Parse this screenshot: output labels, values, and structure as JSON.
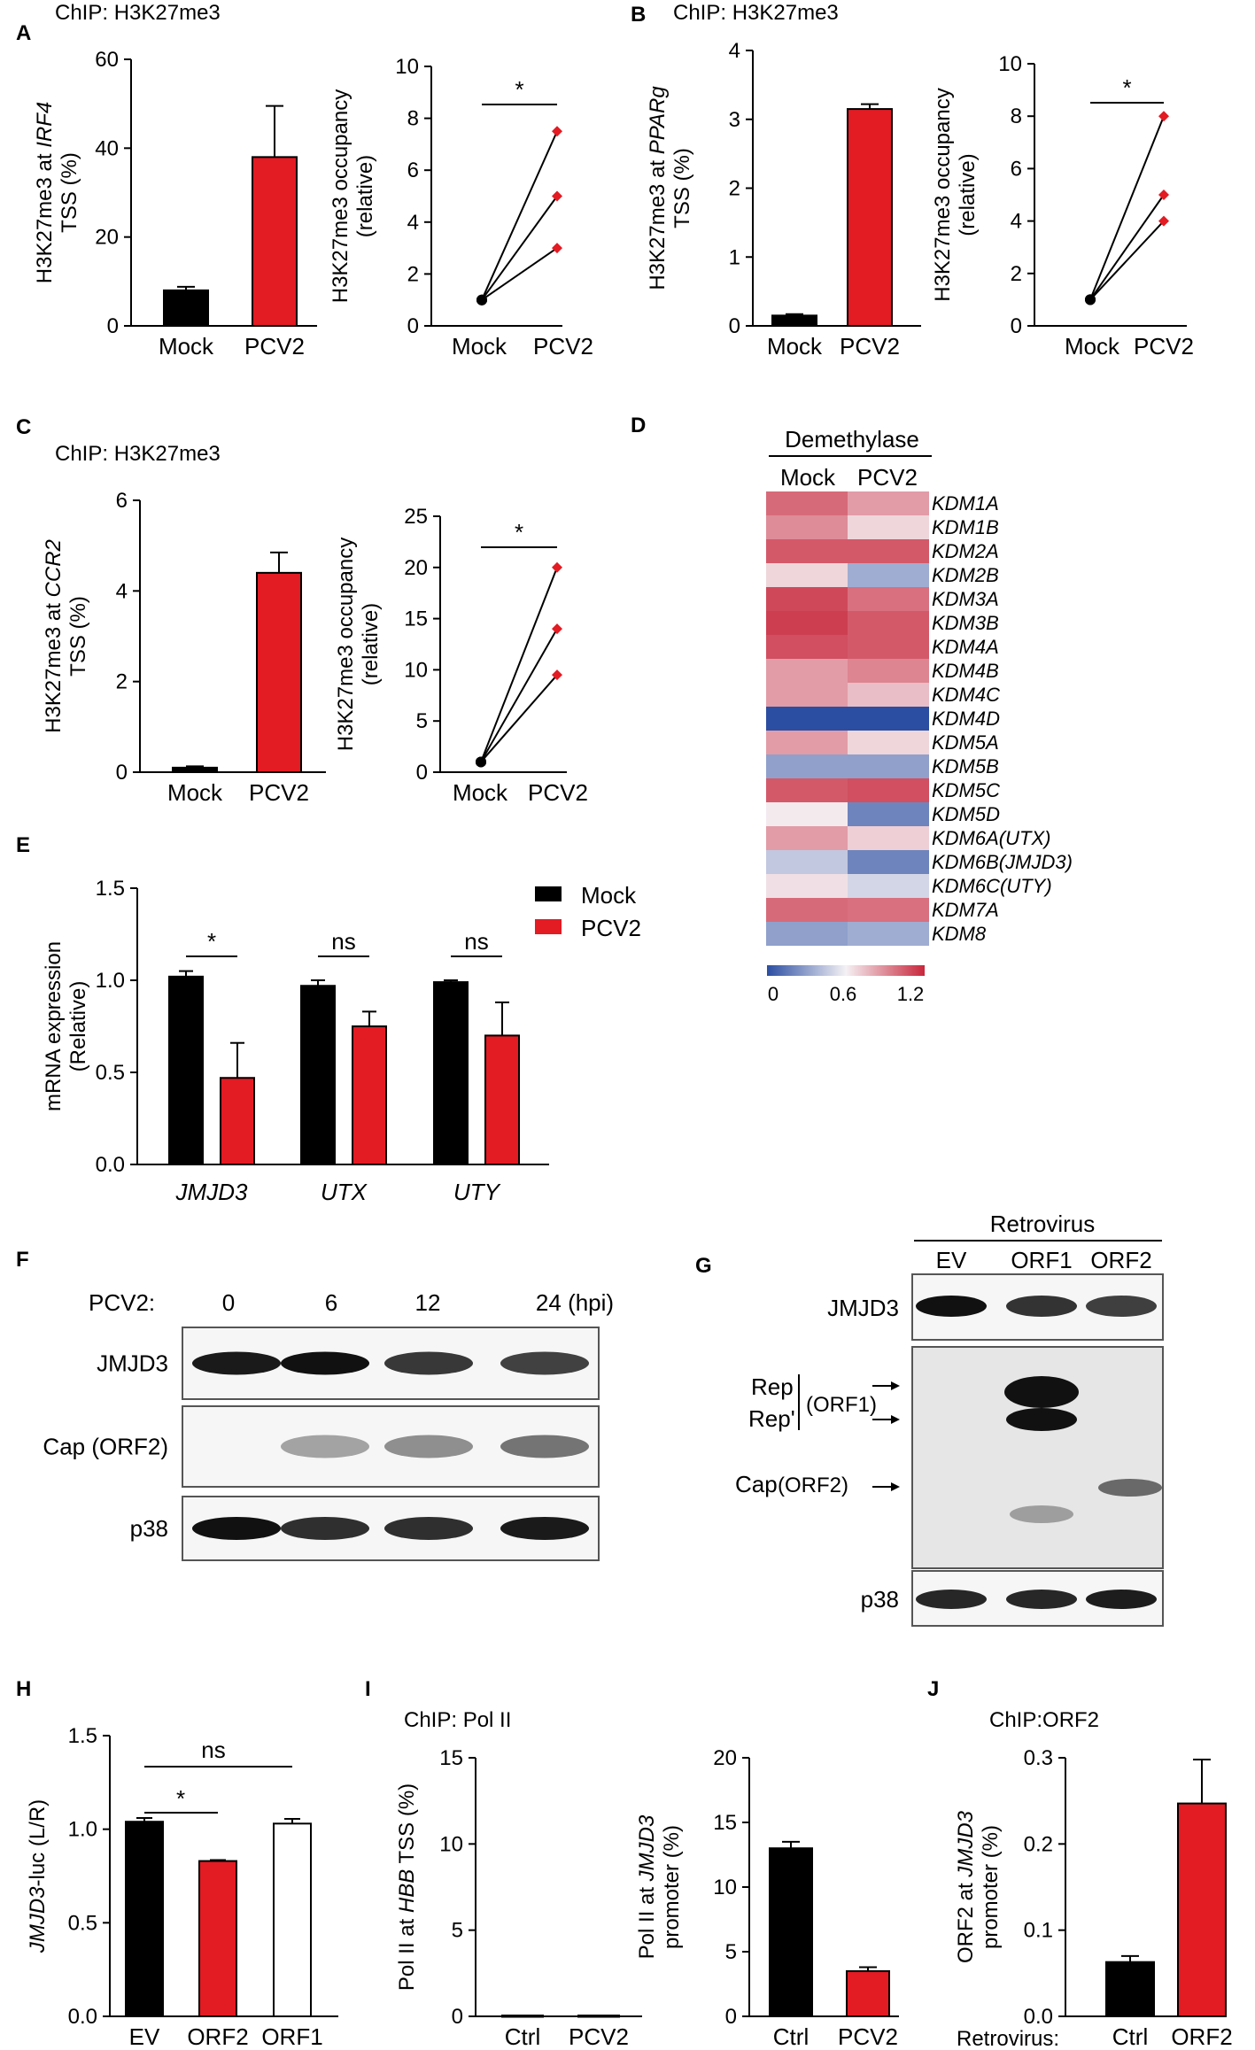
{
  "panel_labels": [
    "A",
    "B",
    "C",
    "D",
    "E",
    "F",
    "G",
    "H",
    "I",
    "J"
  ],
  "colors": {
    "mock": "#000000",
    "pcv2": "#e31b23",
    "white_bar": "#ffffff",
    "line": "#000000",
    "heat_low": "#2b4ea2",
    "heat_mid": "#f4f1f4",
    "heat_high": "#c8263b"
  },
  "chart_data": [
    {
      "id": "A",
      "type": "bar",
      "title": "ChIP: H3K27me3",
      "ylabel": [
        "H3K27me3 at IRF4",
        "TSS (%)"
      ],
      "ylabel_italic_word": "IRF4",
      "categories": [
        "Mock",
        "PCV2"
      ],
      "values": [
        8,
        38
      ],
      "errors": [
        0.8,
        11.5
      ],
      "ylim": [
        0,
        60
      ],
      "yticks": [
        "0",
        "20",
        "40",
        "60"
      ]
    },
    {
      "id": "A2",
      "type": "line",
      "ylabel": [
        "H3K27me3 occupancy",
        "(relative)"
      ],
      "categories": [
        "Mock",
        "PCV2"
      ],
      "series": [
        {
          "values": [
            1,
            7.5
          ]
        },
        {
          "values": [
            1,
            5
          ]
        },
        {
          "values": [
            1,
            3
          ]
        }
      ],
      "ylim": [
        0,
        10
      ],
      "yticks": [
        "0",
        "2",
        "4",
        "6",
        "8",
        "10"
      ],
      "significance": "*"
    },
    {
      "id": "B",
      "type": "bar",
      "title": "ChIP: H3K27me3",
      "ylabel": [
        "H3K27me3 at PPARg",
        "TSS (%)"
      ],
      "ylabel_italic_word": "PPARg",
      "categories": [
        "Mock",
        "PCV2"
      ],
      "values": [
        0.15,
        3.15
      ],
      "errors": [
        0.02,
        0.07
      ],
      "ylim": [
        0,
        4
      ],
      "yticks": [
        "0",
        "1",
        "2",
        "3",
        "4"
      ]
    },
    {
      "id": "B2",
      "type": "line",
      "ylabel": [
        "H3K27me3 occupancy",
        "(relative)"
      ],
      "categories": [
        "Mock",
        "PCV2"
      ],
      "series": [
        {
          "values": [
            1,
            8
          ]
        },
        {
          "values": [
            1,
            5
          ]
        },
        {
          "values": [
            1,
            4
          ]
        }
      ],
      "ylim": [
        0,
        10
      ],
      "yticks": [
        "0",
        "2",
        "4",
        "6",
        "8",
        "10"
      ],
      "significance": "*"
    },
    {
      "id": "C",
      "type": "bar",
      "title": "ChIP: H3K27me3",
      "ylabel": [
        "H3K27me3 at CCR2",
        "TSS (%)"
      ],
      "ylabel_italic_word": "CCR2",
      "categories": [
        "Mock",
        "PCV2"
      ],
      "values": [
        0.1,
        4.4
      ],
      "errors": [
        0.03,
        0.45
      ],
      "ylim": [
        0,
        6
      ],
      "yticks": [
        "0",
        "2",
        "4",
        "6"
      ]
    },
    {
      "id": "C2",
      "type": "line",
      "ylabel": [
        "H3K27me3 occupancy",
        "(relative)"
      ],
      "categories": [
        "Mock",
        "PCV2"
      ],
      "series": [
        {
          "values": [
            1,
            20
          ]
        },
        {
          "values": [
            1,
            14
          ]
        },
        {
          "values": [
            1,
            9.5
          ]
        }
      ],
      "ylim": [
        0,
        25
      ],
      "yticks": [
        "0",
        "5",
        "10",
        "15",
        "20",
        "25"
      ],
      "significance": "*"
    },
    {
      "id": "D",
      "type": "heatmap",
      "title": "Demethylase",
      "columns": [
        "Mock",
        "PCV2"
      ],
      "rows": [
        "KDM1A",
        "KDM1B",
        "KDM2A",
        "KDM2B",
        "KDM3A",
        "KDM3B",
        "KDM4A",
        "KDM4B",
        "KDM4C",
        "KDM4D",
        "KDM5A",
        "KDM5B",
        "KDM5C",
        "KDM5D",
        "KDM6A(UTX)",
        "KDM6B(JMJD3)",
        "KDM6C(UTY)",
        "KDM7A",
        "KDM8"
      ],
      "values": [
        [
          1.0,
          0.85
        ],
        [
          0.9,
          0.68
        ],
        [
          1.05,
          1.05
        ],
        [
          0.68,
          0.35
        ],
        [
          1.1,
          0.98
        ],
        [
          1.13,
          1.05
        ],
        [
          1.08,
          1.05
        ],
        [
          0.85,
          0.92
        ],
        [
          0.85,
          0.75
        ],
        [
          0.0,
          0.0
        ],
        [
          0.85,
          0.68
        ],
        [
          0.3,
          0.3
        ],
        [
          1.05,
          1.08
        ],
        [
          0.62,
          0.2
        ],
        [
          0.85,
          0.7
        ],
        [
          0.45,
          0.2
        ],
        [
          0.65,
          0.5
        ],
        [
          1.0,
          0.98
        ],
        [
          0.3,
          0.35
        ]
      ],
      "colorbar": {
        "min": 0,
        "max": 1.2,
        "ticks": [
          "0",
          "0.6",
          "1.2"
        ]
      }
    },
    {
      "id": "E",
      "type": "bar",
      "ylabel": [
        "mRNA expression",
        "(Relative)"
      ],
      "categories": [
        "JMJD3",
        "UTX",
        "UTY"
      ],
      "series": [
        {
          "name": "Mock",
          "values": [
            1.02,
            0.97,
            0.99
          ],
          "errors": [
            0.03,
            0.03,
            0.01
          ]
        },
        {
          "name": "PCV2",
          "values": [
            0.47,
            0.75,
            0.7
          ],
          "errors": [
            0.19,
            0.08,
            0.18
          ]
        }
      ],
      "ylim": [
        0,
        1.5
      ],
      "yticks": [
        "0.0",
        "0.5",
        "1.0",
        "1.5"
      ],
      "significance": [
        "*",
        "ns",
        "ns"
      ]
    },
    {
      "id": "H",
      "type": "bar",
      "ylabel": [
        "JMJD3-luc (L/R)"
      ],
      "ylabel_italic_word": "JMJD3",
      "categories": [
        "EV",
        "ORF2",
        "ORF1"
      ],
      "values": [
        1.04,
        0.83,
        1.03
      ],
      "errors": [
        0.02,
        0.005,
        0.025
      ],
      "ylim": [
        0,
        1.5
      ],
      "yticks": [
        "0.0",
        "0.5",
        "1.0",
        "1.5"
      ],
      "significance": [
        {
          "pair": [
            "EV",
            "ORF2"
          ],
          "label": "*"
        },
        {
          "pair": [
            "EV",
            "ORF1"
          ],
          "label": "ns"
        }
      ]
    },
    {
      "id": "I",
      "type": "bar",
      "title": "ChIP: Pol II",
      "ylabel": [
        "Pol II at HBB TSS (%)"
      ],
      "ylabel_italic_word": "HBB",
      "categories": [
        "Ctrl",
        "PCV2"
      ],
      "values": [
        0.05,
        0.05
      ],
      "ylim": [
        0,
        15
      ],
      "yticks": [
        "0",
        "5",
        "10",
        "15"
      ]
    },
    {
      "id": "I2",
      "type": "bar",
      "ylabel": [
        "Pol II at JMJD3",
        "promoter (%)"
      ],
      "ylabel_italic_word": "JMJD3",
      "categories": [
        "Ctrl",
        "PCV2"
      ],
      "values": [
        13,
        3.5
      ],
      "errors": [
        0.5,
        0.3
      ],
      "ylim": [
        0,
        20
      ],
      "yticks": [
        "0",
        "5",
        "10",
        "15",
        "20"
      ]
    },
    {
      "id": "J",
      "type": "bar",
      "title": "ChIP:ORF2",
      "ylabel": [
        "ORF2 at JMJD3",
        "promoter (%)"
      ],
      "ylabel_italic_word": "JMJD3",
      "categories": [
        "Ctrl",
        "ORF2"
      ],
      "values": [
        0.063,
        0.247
      ],
      "errors": [
        0.007,
        0.051
      ],
      "ylim": [
        0,
        0.3
      ],
      "yticks": [
        "0.0",
        "0.1",
        "0.2",
        "0.3"
      ],
      "x_prefix": "Retrovirus:"
    }
  ],
  "blot_F": {
    "header_label": "PCV2:",
    "lanes": [
      "0",
      "6",
      "12",
      "24 (hpi)"
    ],
    "rows": [
      {
        "label": "JMJD3",
        "intensities": [
          0.95,
          1.0,
          0.8,
          0.75
        ]
      },
      {
        "label": "Cap (ORF2)",
        "intensities": [
          0.0,
          0.25,
          0.35,
          0.5
        ]
      },
      {
        "label": "p38",
        "intensities": [
          1.0,
          0.85,
          0.85,
          0.95
        ]
      }
    ]
  },
  "blot_G": {
    "group_label": "Retrovirus",
    "lanes": [
      "EV",
      "ORF1",
      "ORF2"
    ],
    "top_label": "JMJD3",
    "top_intensities": [
      1.0,
      0.85,
      0.8
    ],
    "mid_labels": {
      "rep": "Rep",
      "rep_prime": "Rep'",
      "orf1": "(ORF1)",
      "cap": "Cap",
      "orf2": "(ORF2)"
    },
    "bottom_label": "p38",
    "bottom_intensities": [
      0.9,
      0.9,
      0.95
    ]
  }
}
